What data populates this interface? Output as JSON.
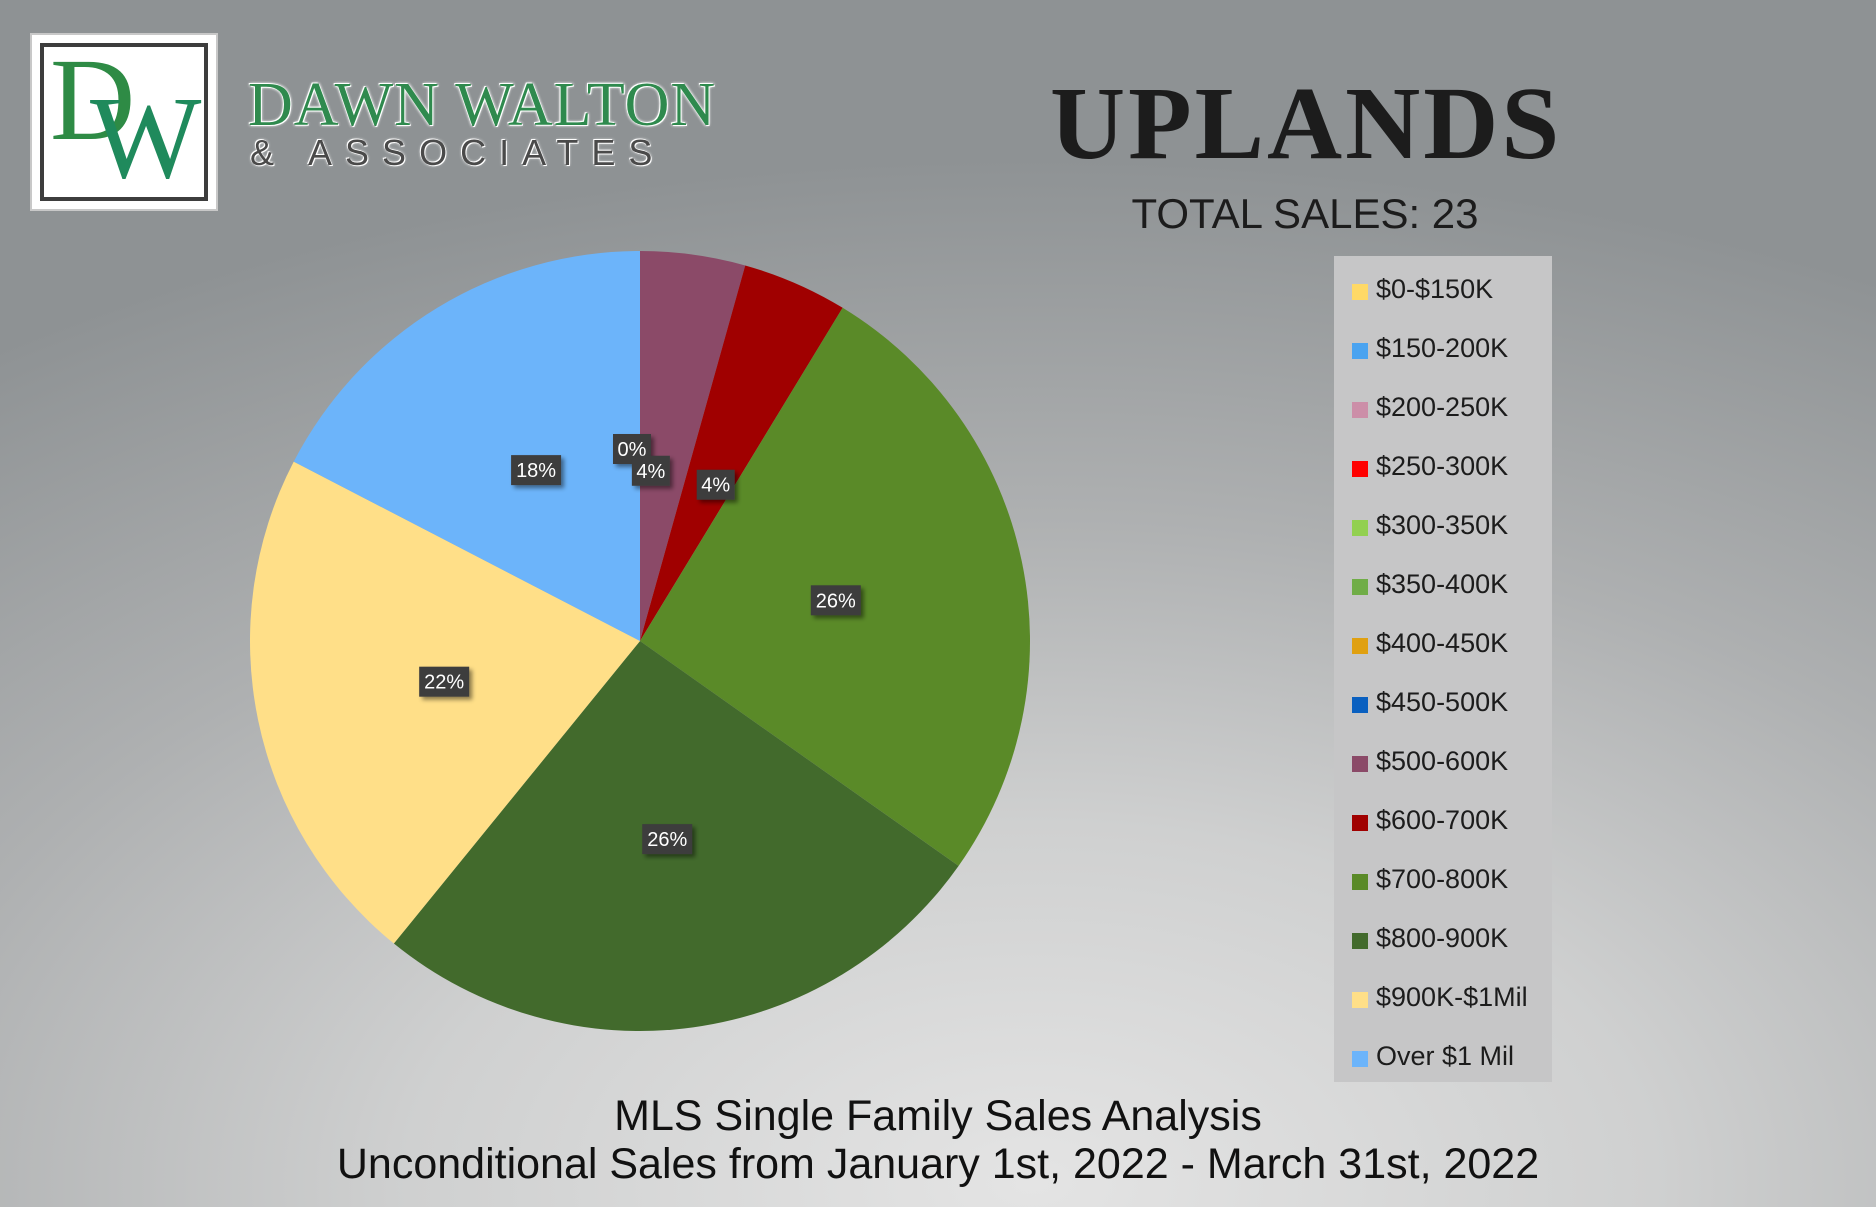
{
  "brand": {
    "logo_letters": "DW",
    "name": "DAWN WALTON",
    "sub": "& ASSOCIATES"
  },
  "header": {
    "title": "UPLANDS",
    "total_sales": "TOTAL SALES: 23"
  },
  "footer": {
    "line1": "MLS Single Family Sales Analysis",
    "line2": "Unconditional Sales from January 1st, 2022 - March 31st, 2022"
  },
  "chart_data": {
    "type": "pie",
    "title": "UPLANDS",
    "total": 23,
    "legend_position": "right",
    "slices": [
      {
        "label": "$0-$150K",
        "value": 0,
        "percent_label": "",
        "color": "#ffd966"
      },
      {
        "label": "$150-200K",
        "value": 0,
        "percent_label": "",
        "color": "#4aa3f0"
      },
      {
        "label": "$200-250K",
        "value": 0,
        "percent_label": "",
        "color": "#cc8ea8"
      },
      {
        "label": "$250-300K",
        "value": 0,
        "percent_label": "",
        "color": "#ff0000"
      },
      {
        "label": "$300-350K",
        "value": 0,
        "percent_label": "",
        "color": "#92d050"
      },
      {
        "label": "$350-400K",
        "value": 0,
        "percent_label": "",
        "color": "#70ad47"
      },
      {
        "label": "$400-450K",
        "value": 0,
        "percent_label": "0%",
        "color": "#e0a010"
      },
      {
        "label": "$450-500K",
        "value": 0,
        "percent_label": "",
        "color": "#0a60c0"
      },
      {
        "label": "$500-600K",
        "value": 1,
        "percent_label": "4%",
        "color": "#8b4a68"
      },
      {
        "label": "$600-700K",
        "value": 1,
        "percent_label": "4%",
        "color": "#a00000"
      },
      {
        "label": "$700-800K",
        "value": 6,
        "percent_label": "26%",
        "color": "#5a8a28"
      },
      {
        "label": "$800-900K",
        "value": 6,
        "percent_label": "26%",
        "color": "#426a2c"
      },
      {
        "label": "$900K-$1Mil",
        "value": 5,
        "percent_label": "22%",
        "color": "#ffdf88"
      },
      {
        "label": "Over $1 Mil",
        "value": 4,
        "percent_label": "18%",
        "color": "#6cb4fa"
      }
    ]
  }
}
